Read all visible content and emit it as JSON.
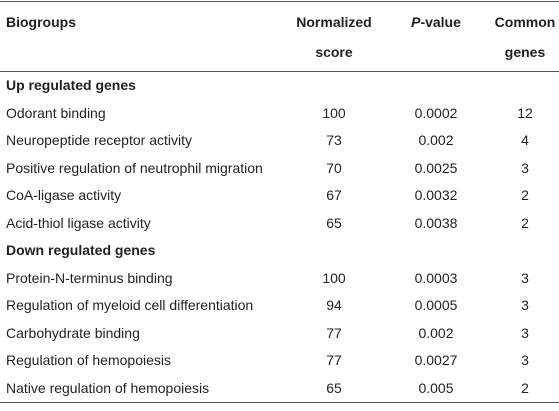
{
  "table": {
    "columns": [
      "Biogroups",
      "Normalized score",
      "P-value",
      "Common genes"
    ],
    "sections": [
      {
        "title": "Up regulated genes",
        "rows": [
          [
            "Odorant binding",
            "100",
            "0.0002",
            "12"
          ],
          [
            "Neuropeptide receptor activity",
            "73",
            "0.002",
            "4"
          ],
          [
            "Positive regulation of neutrophil migration",
            "70",
            "0.0025",
            "3"
          ],
          [
            "CoA-ligase activity",
            "67",
            "0.0032",
            "2"
          ],
          [
            "Acid-thiol ligase activity",
            "65",
            "0.0038",
            "2"
          ]
        ]
      },
      {
        "title": "Down regulated genes",
        "rows": [
          [
            "Protein-N-terminus binding",
            "100",
            "0.0003",
            "3"
          ],
          [
            "Regulation of myeloid cell differentiation",
            "94",
            "0.0005",
            "3"
          ],
          [
            "Carbohydrate binding",
            "77",
            "0.002",
            "3"
          ],
          [
            "Regulation of hemopoiesis",
            "77",
            "0.0027",
            "3"
          ],
          [
            "Native regulation of hemopoiesis",
            "65",
            "0.005",
            "2"
          ]
        ]
      }
    ]
  }
}
